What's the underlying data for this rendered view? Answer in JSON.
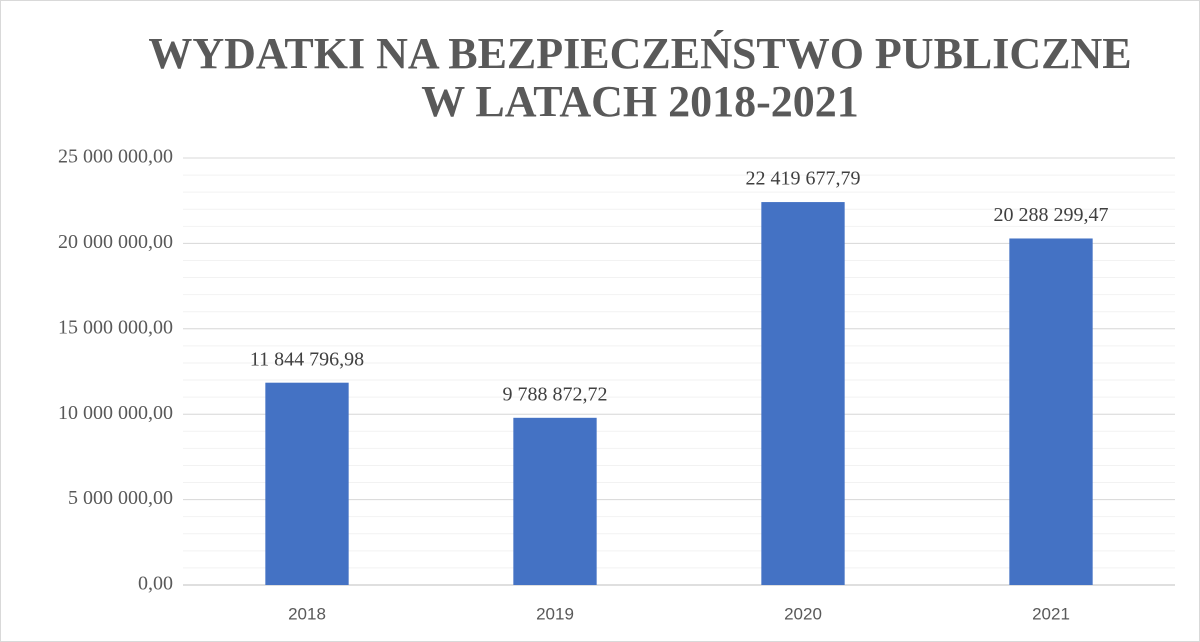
{
  "chart_data": {
    "type": "bar",
    "title": [
      "WYDATKI NA BEZPIECZEŃSTWO PUBLICZNE",
      "W LATACH 2018-2021"
    ],
    "categories": [
      "2018",
      "2019",
      "2020",
      "2021"
    ],
    "values": [
      11844796.98,
      9788872.72,
      22419677.79,
      20288299.47
    ],
    "value_labels": [
      "11 844 796,98",
      "9 788 872,72",
      "22 419 677,79",
      "20 288 299,47"
    ],
    "color": "#4472c4",
    "ylim": [
      0,
      25000000
    ],
    "yticks": [
      {
        "value": 0,
        "label": "0,00"
      },
      {
        "value": 5000000,
        "label": "5 000 000,00"
      },
      {
        "value": 10000000,
        "label": "10 000 000,00"
      },
      {
        "value": 15000000,
        "label": "15 000 000,00"
      },
      {
        "value": 20000000,
        "label": "20 000 000,00"
      },
      {
        "value": 25000000,
        "label": "25 000 000,00"
      }
    ],
    "grid": true,
    "minor_grid_step": 1000000
  }
}
